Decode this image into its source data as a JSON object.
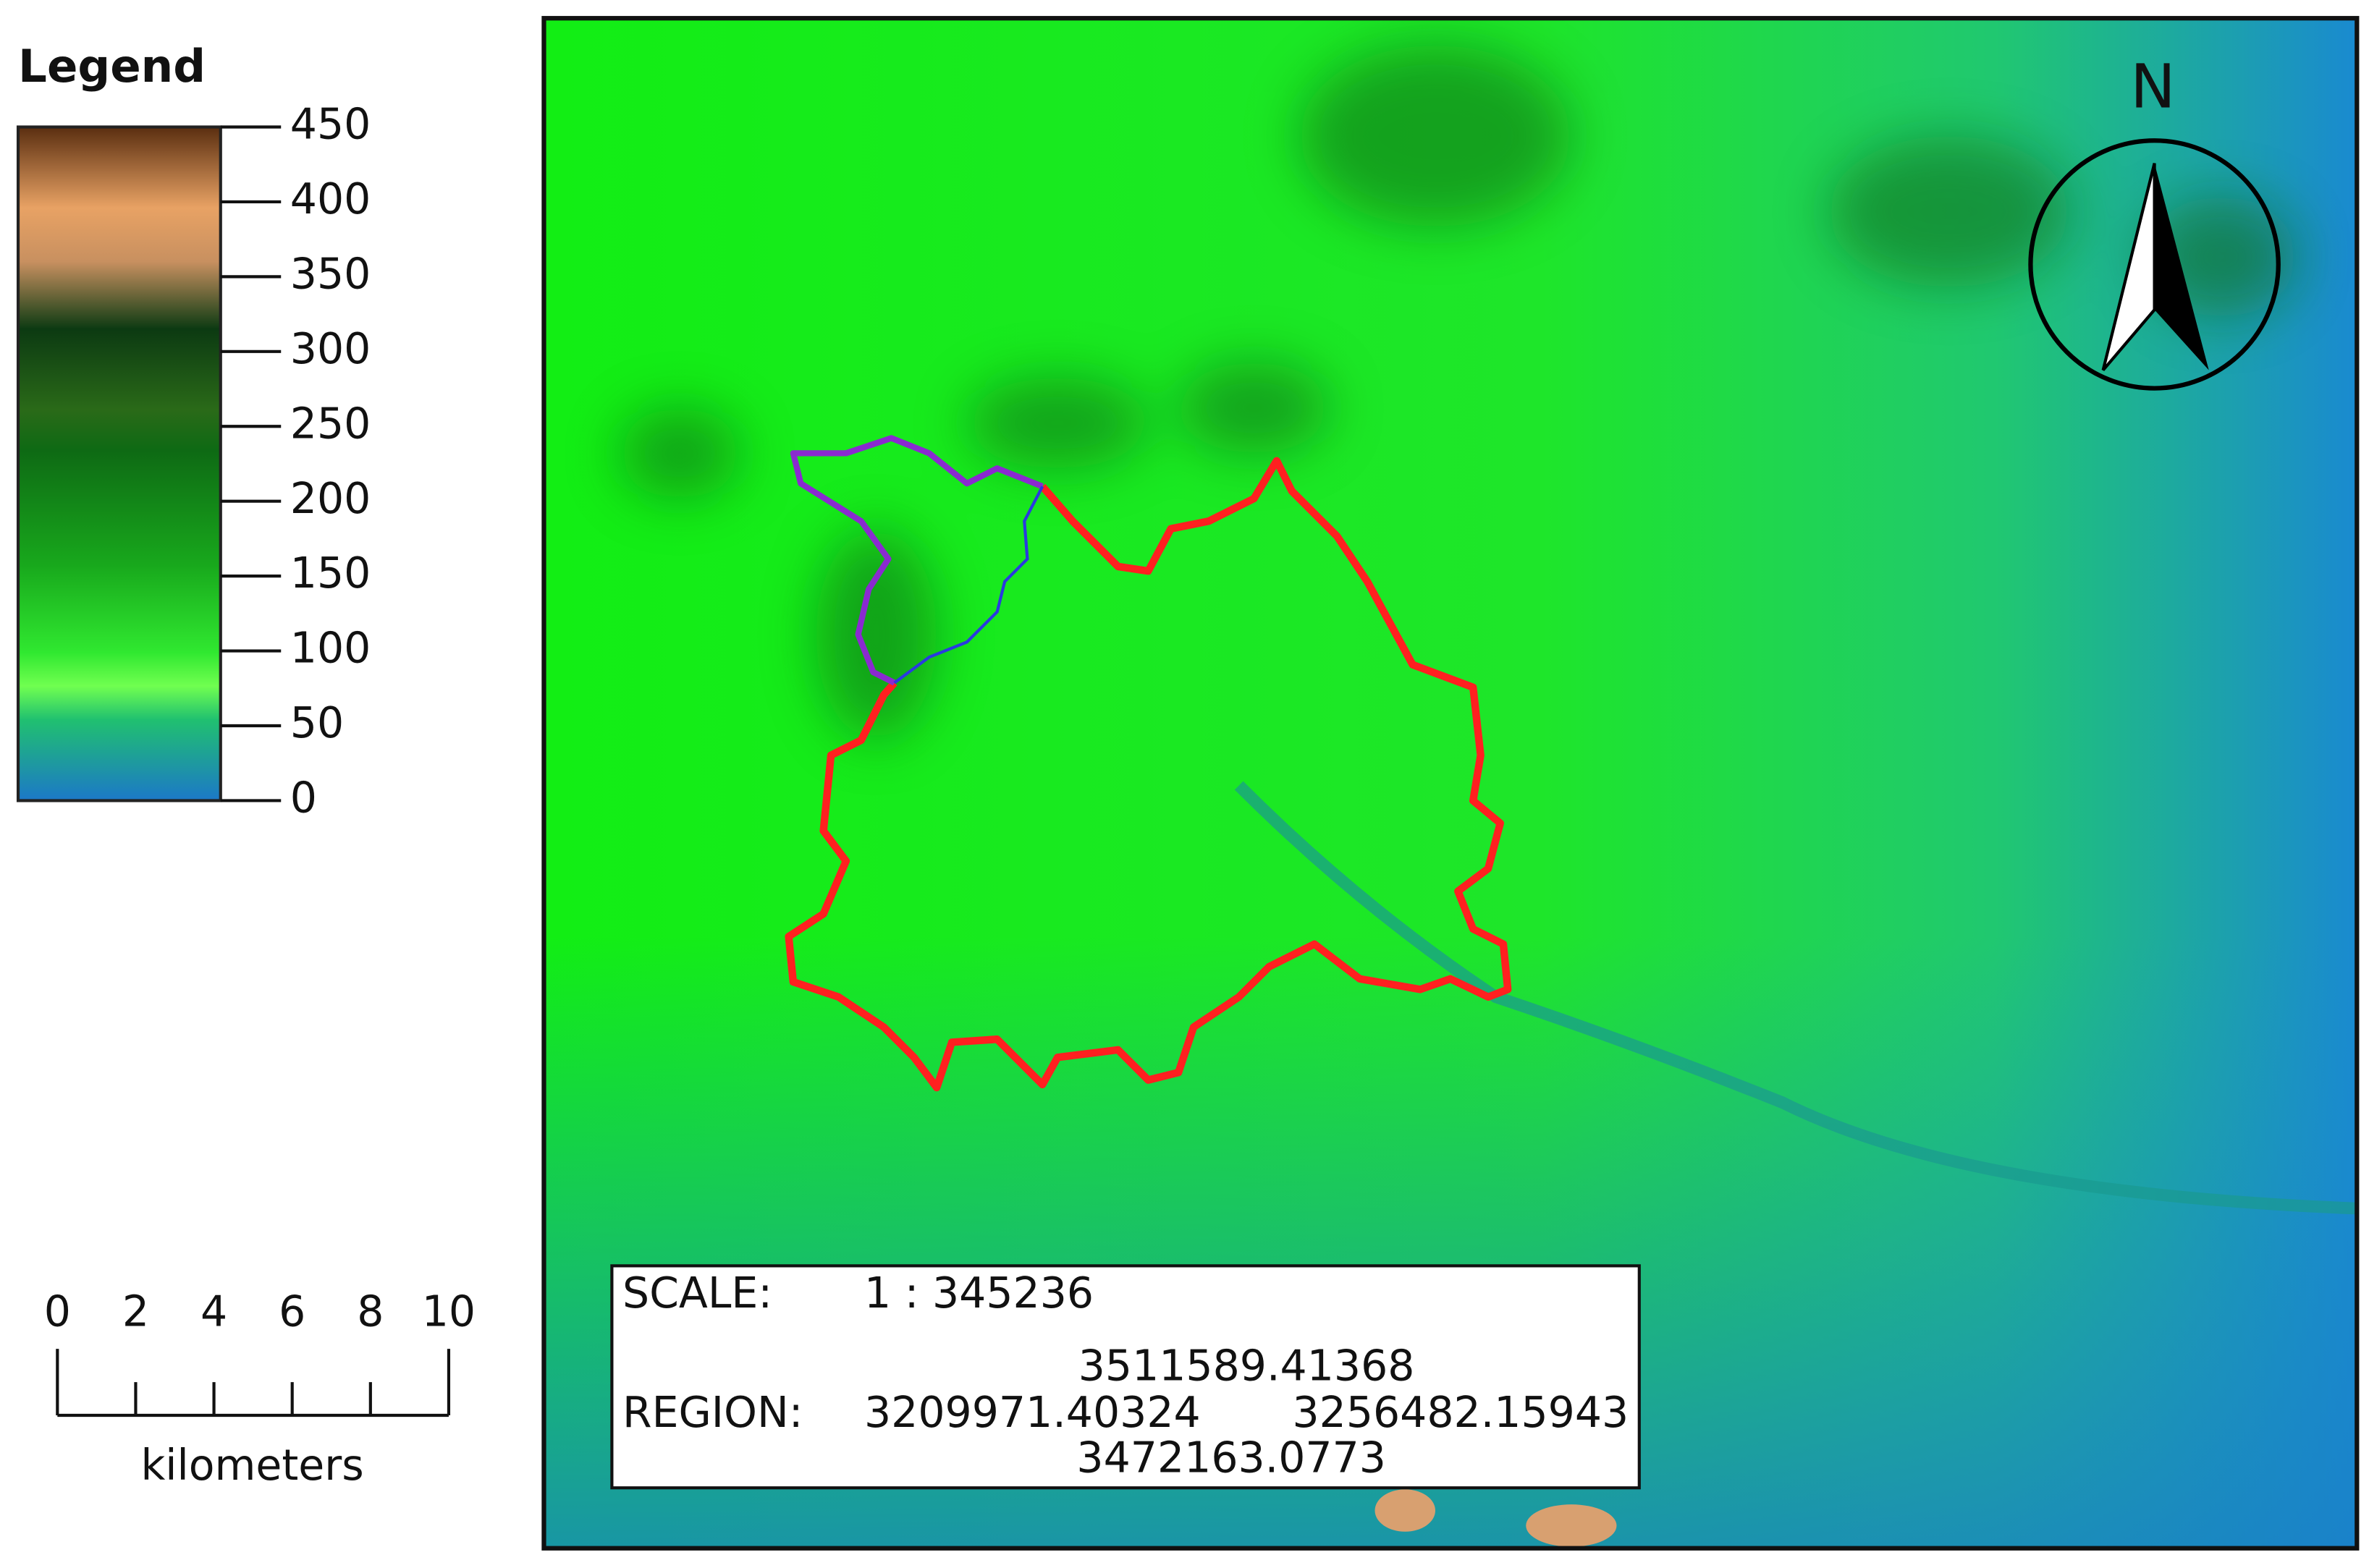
{
  "legend": {
    "title": "Legend",
    "range": [
      0,
      450
    ],
    "ticks": [
      0,
      50,
      100,
      150,
      200,
      250,
      300,
      350,
      400,
      450
    ]
  },
  "scalebar": {
    "range": [
      0,
      10
    ],
    "ticks": [
      0,
      2,
      4,
      6,
      8,
      10
    ],
    "unit": "kilometers"
  },
  "north": "N",
  "info": {
    "scale_label": "SCALE:",
    "scale": "1 : 345236",
    "region_label": "REGION:",
    "north": "3511589.41368",
    "west": "3209971.40324",
    "east": "3256482.15943",
    "south": "3472163.0773"
  }
}
